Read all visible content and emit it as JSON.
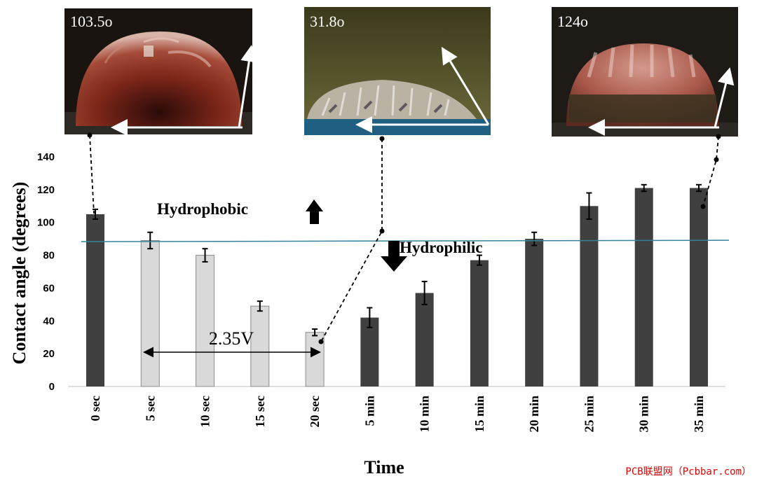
{
  "chart_data": {
    "type": "bar",
    "xlabel": "Time",
    "ylabel": "Contact angle (degrees)",
    "ylim": [
      0,
      140
    ],
    "yticks": [
      0,
      20,
      40,
      60,
      80,
      100,
      120,
      140
    ],
    "grid": false,
    "categories": [
      "0 sec",
      "5 sec",
      "10 sec",
      "15 sec",
      "20 sec",
      "5 min",
      "10 min",
      "15 min",
      "20 min",
      "25 min",
      "30 min",
      "35 min"
    ],
    "values": [
      105,
      89,
      80,
      49,
      33,
      42,
      57,
      77,
      90,
      110,
      121,
      121
    ],
    "errors": [
      3,
      5,
      4,
      3,
      2,
      6,
      7,
      3,
      4,
      8,
      2,
      2
    ],
    "bar_colors": [
      "#404040",
      "#d9d9d9",
      "#d9d9d9",
      "#d9d9d9",
      "#d9d9d9",
      "#404040",
      "#404040",
      "#404040",
      "#404040",
      "#404040",
      "#404040",
      "#404040"
    ],
    "threshold": {
      "value": 90,
      "color": "#31849b"
    },
    "annotations": {
      "hydrophobic": "Hydrophobic",
      "hydrophilic": "Hydrophilic",
      "voltage": "2.35V"
    },
    "photos": [
      {
        "label": "103.5o",
        "angle": 103.5
      },
      {
        "label": "31.8o",
        "angle": 31.8
      },
      {
        "label": "124o",
        "angle": 124
      }
    ]
  },
  "watermark": "PCB联盟网（Pcbbar.com）"
}
